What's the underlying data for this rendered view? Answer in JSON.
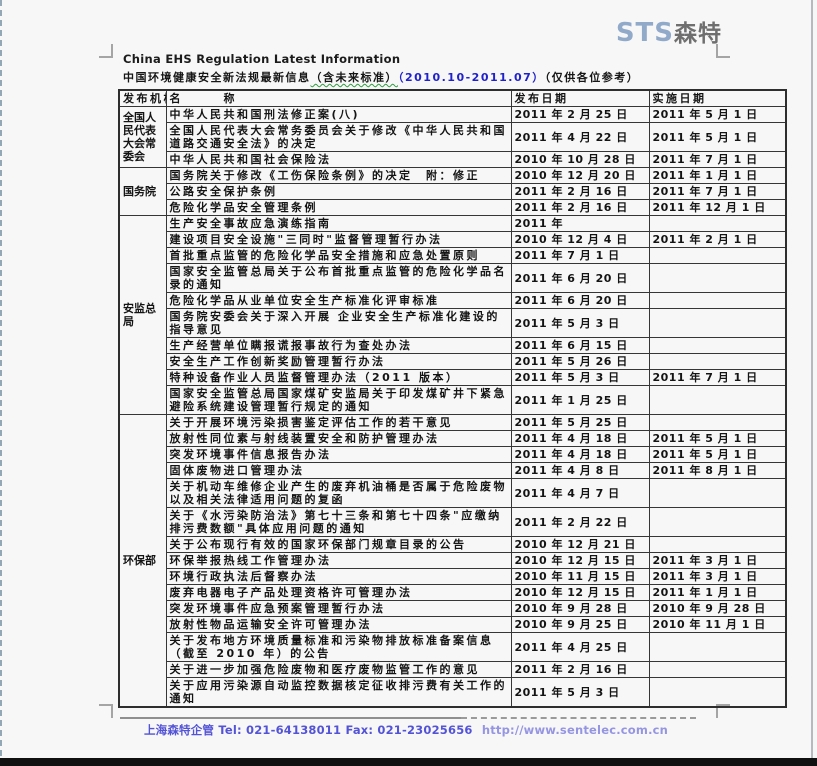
{
  "logo": {
    "sts": "STS",
    "sente": "森特",
    "sts_color": "#91aac9",
    "sente_color": "#6f6f6f"
  },
  "header": {
    "title_en": "China EHS Regulation Latest Information",
    "title_cn_prefix": "中国环境健康安全新法规最新信息",
    "title_cn_paren": "（含未来标准）",
    "title_cn_period": "（2010.10-2011.07）",
    "title_cn_suffix": "（仅供各位参考）",
    "accent_blue": "#2121cc"
  },
  "table": {
    "headers": [
      "发布机构",
      "名　　　称",
      "发布日期",
      "实施日期"
    ],
    "groups": [
      {
        "agency": "全国人民代表大会常委会",
        "rows": [
          {
            "name": "中华人民共和国刑法修正案(八)",
            "pub": "2011 年 2 月 25 日",
            "eff": "2011 年 5 月 1 日"
          },
          {
            "name": "全国人民代表大会常务委员会关于修改《中华人民共和国道路交通安全法》的决定",
            "pub": "2011 年 4 月 22 日",
            "eff": "2011 年 5 月 1 日"
          },
          {
            "name": "中华人民共和国社会保险法",
            "pub": "2010 年 10 月 28 日",
            "eff": "2011 年 7 月 1 日"
          }
        ]
      },
      {
        "agency": "国务院",
        "rows": [
          {
            "name": "国务院关于修改《工伤保险条例》的决定　附：修正",
            "pub": "2010 年 12 月 20 日",
            "eff": "2011 年 1 月 1 日"
          },
          {
            "name": "公路安全保护条例",
            "pub": "2011 年 2 月 16 日",
            "eff": "2011 年 7 月 1 日"
          },
          {
            "name": "危险化学品安全管理条例",
            "pub": "2011 年 2 月 16 日",
            "eff": "2011 年 12 月 1 日"
          }
        ]
      },
      {
        "agency": "安监总局",
        "rows": [
          {
            "name": "生产安全事故应急演练指南",
            "pub": "2011 年",
            "eff": ""
          },
          {
            "name": "建设项目安全设施\"三同时\"监督管理暂行办法",
            "pub": "2010 年 12 月 4 日",
            "eff": "2011 年 2 月 1 日"
          },
          {
            "name": "首批重点监管的危险化学品安全措施和应急处置原则",
            "pub": "2011 年 7 月 1 日",
            "eff": ""
          },
          {
            "name": "国家安全监管总局关于公布首批重点监管的危险化学品名录的通知",
            "pub": "2011 年 6 月 20 日",
            "eff": ""
          },
          {
            "name": "危险化学品从业单位安全生产标准化评审标准",
            "pub": "2011 年 6 月 20 日",
            "eff": ""
          },
          {
            "name": "国务院安委会关于深入开展 企业安全生产标准化建设的指导意见",
            "pub": "2011 年 5 月 3 日",
            "eff": ""
          },
          {
            "name": "生产经营单位瞒报谎报事故行为查处办法",
            "pub": "2011 年 6 月 15 日",
            "eff": ""
          },
          {
            "name": "安全生产工作创新奖励管理暂行办法",
            "pub": "2011 年 5 月 26 日",
            "eff": ""
          },
          {
            "name": "特种设备作业人员监督管理办法（2011 版本）",
            "pub": "2011 年 5 月 3 日",
            "eff": "2011 年 7 月 1 日"
          },
          {
            "name": "国家安全监管总局国家煤矿安监局关于印发煤矿井下紧急避险系统建设管理暂行规定的通知",
            "pub": "2011 年 1 月 25 日",
            "eff": ""
          }
        ]
      },
      {
        "agency": "环保部",
        "rows": [
          {
            "name": "关于开展环境污染损害鉴定评估工作的若干意见",
            "pub": "2011 年 5 月 25 日",
            "eff": ""
          },
          {
            "name": "放射性同位素与射线装置安全和防护管理办法",
            "pub": "2011 年 4 月 18 日",
            "eff": "2011 年 5 月 1 日"
          },
          {
            "name": "突发环境事件信息报告办法",
            "pub": "2011 年 4 月 18 日",
            "eff": "2011 年 5 月 1 日"
          },
          {
            "name": "固体废物进口管理办法",
            "pub": "2011 年 4 月 8 日",
            "eff": "2011 年 8 月 1 日"
          },
          {
            "name": "关于机动车维修企业产生的废弃机油桶是否属于危险废物以及相关法律适用问题的复函",
            "pub": "2011 年 4 月 7 日",
            "eff": ""
          },
          {
            "name": "关于《水污染防治法》第七十三条和第七十四条\"应缴纳排污费数额\"具体应用问题的通知",
            "pub": "2011 年 2 月 22 日",
            "eff": ""
          },
          {
            "name": "关于公布现行有效的国家环保部门规章目录的公告",
            "pub": "2010 年 12 月 21 日",
            "eff": ""
          },
          {
            "name": "环保举报热线工作管理办法",
            "pub": "2010 年 12 月 15 日",
            "eff": "2011 年 3 月 1 日"
          },
          {
            "name": "环境行政执法后督察办法",
            "pub": "2010 年 11 月 15 日",
            "eff": "2011 年 3 月 1 日"
          },
          {
            "name": "废弃电器电子产品处理资格许可管理办法",
            "pub": "2010 年 12 月 15 日",
            "eff": "2011 年 1 月 1 日"
          },
          {
            "name": "突发环境事件应急预案管理暂行办法",
            "pub": "2010 年 9 月 28 日",
            "eff": "2010 年 9 月 28 日"
          },
          {
            "name": "放射性物品运输安全许可管理办法",
            "pub": "2010 年 9 月 25 日",
            "eff": "2010 年 11 月 1 日"
          },
          {
            "name": "关于发布地方环境质量标准和污染物排放标准备案信息（截至 2010 年）的公告",
            "pub": "2011 年 4 月 25 日",
            "eff": ""
          },
          {
            "name": "关于进一步加强危险废物和医疗废物监管工作的意见",
            "pub": "2011 年 2 月 16 日",
            "eff": ""
          },
          {
            "name": "关于应用污染源自动监控数据核定征收排污费有关工作的通知",
            "pub": "2011 年 5 月 3 日",
            "eff": ""
          }
        ]
      }
    ]
  },
  "footer": {
    "company": "上海森特企管",
    "tel": "Tel: 021-64138011",
    "fax": "Fax: 021-23025656",
    "url": "http://www.sentelec.com.cn"
  }
}
